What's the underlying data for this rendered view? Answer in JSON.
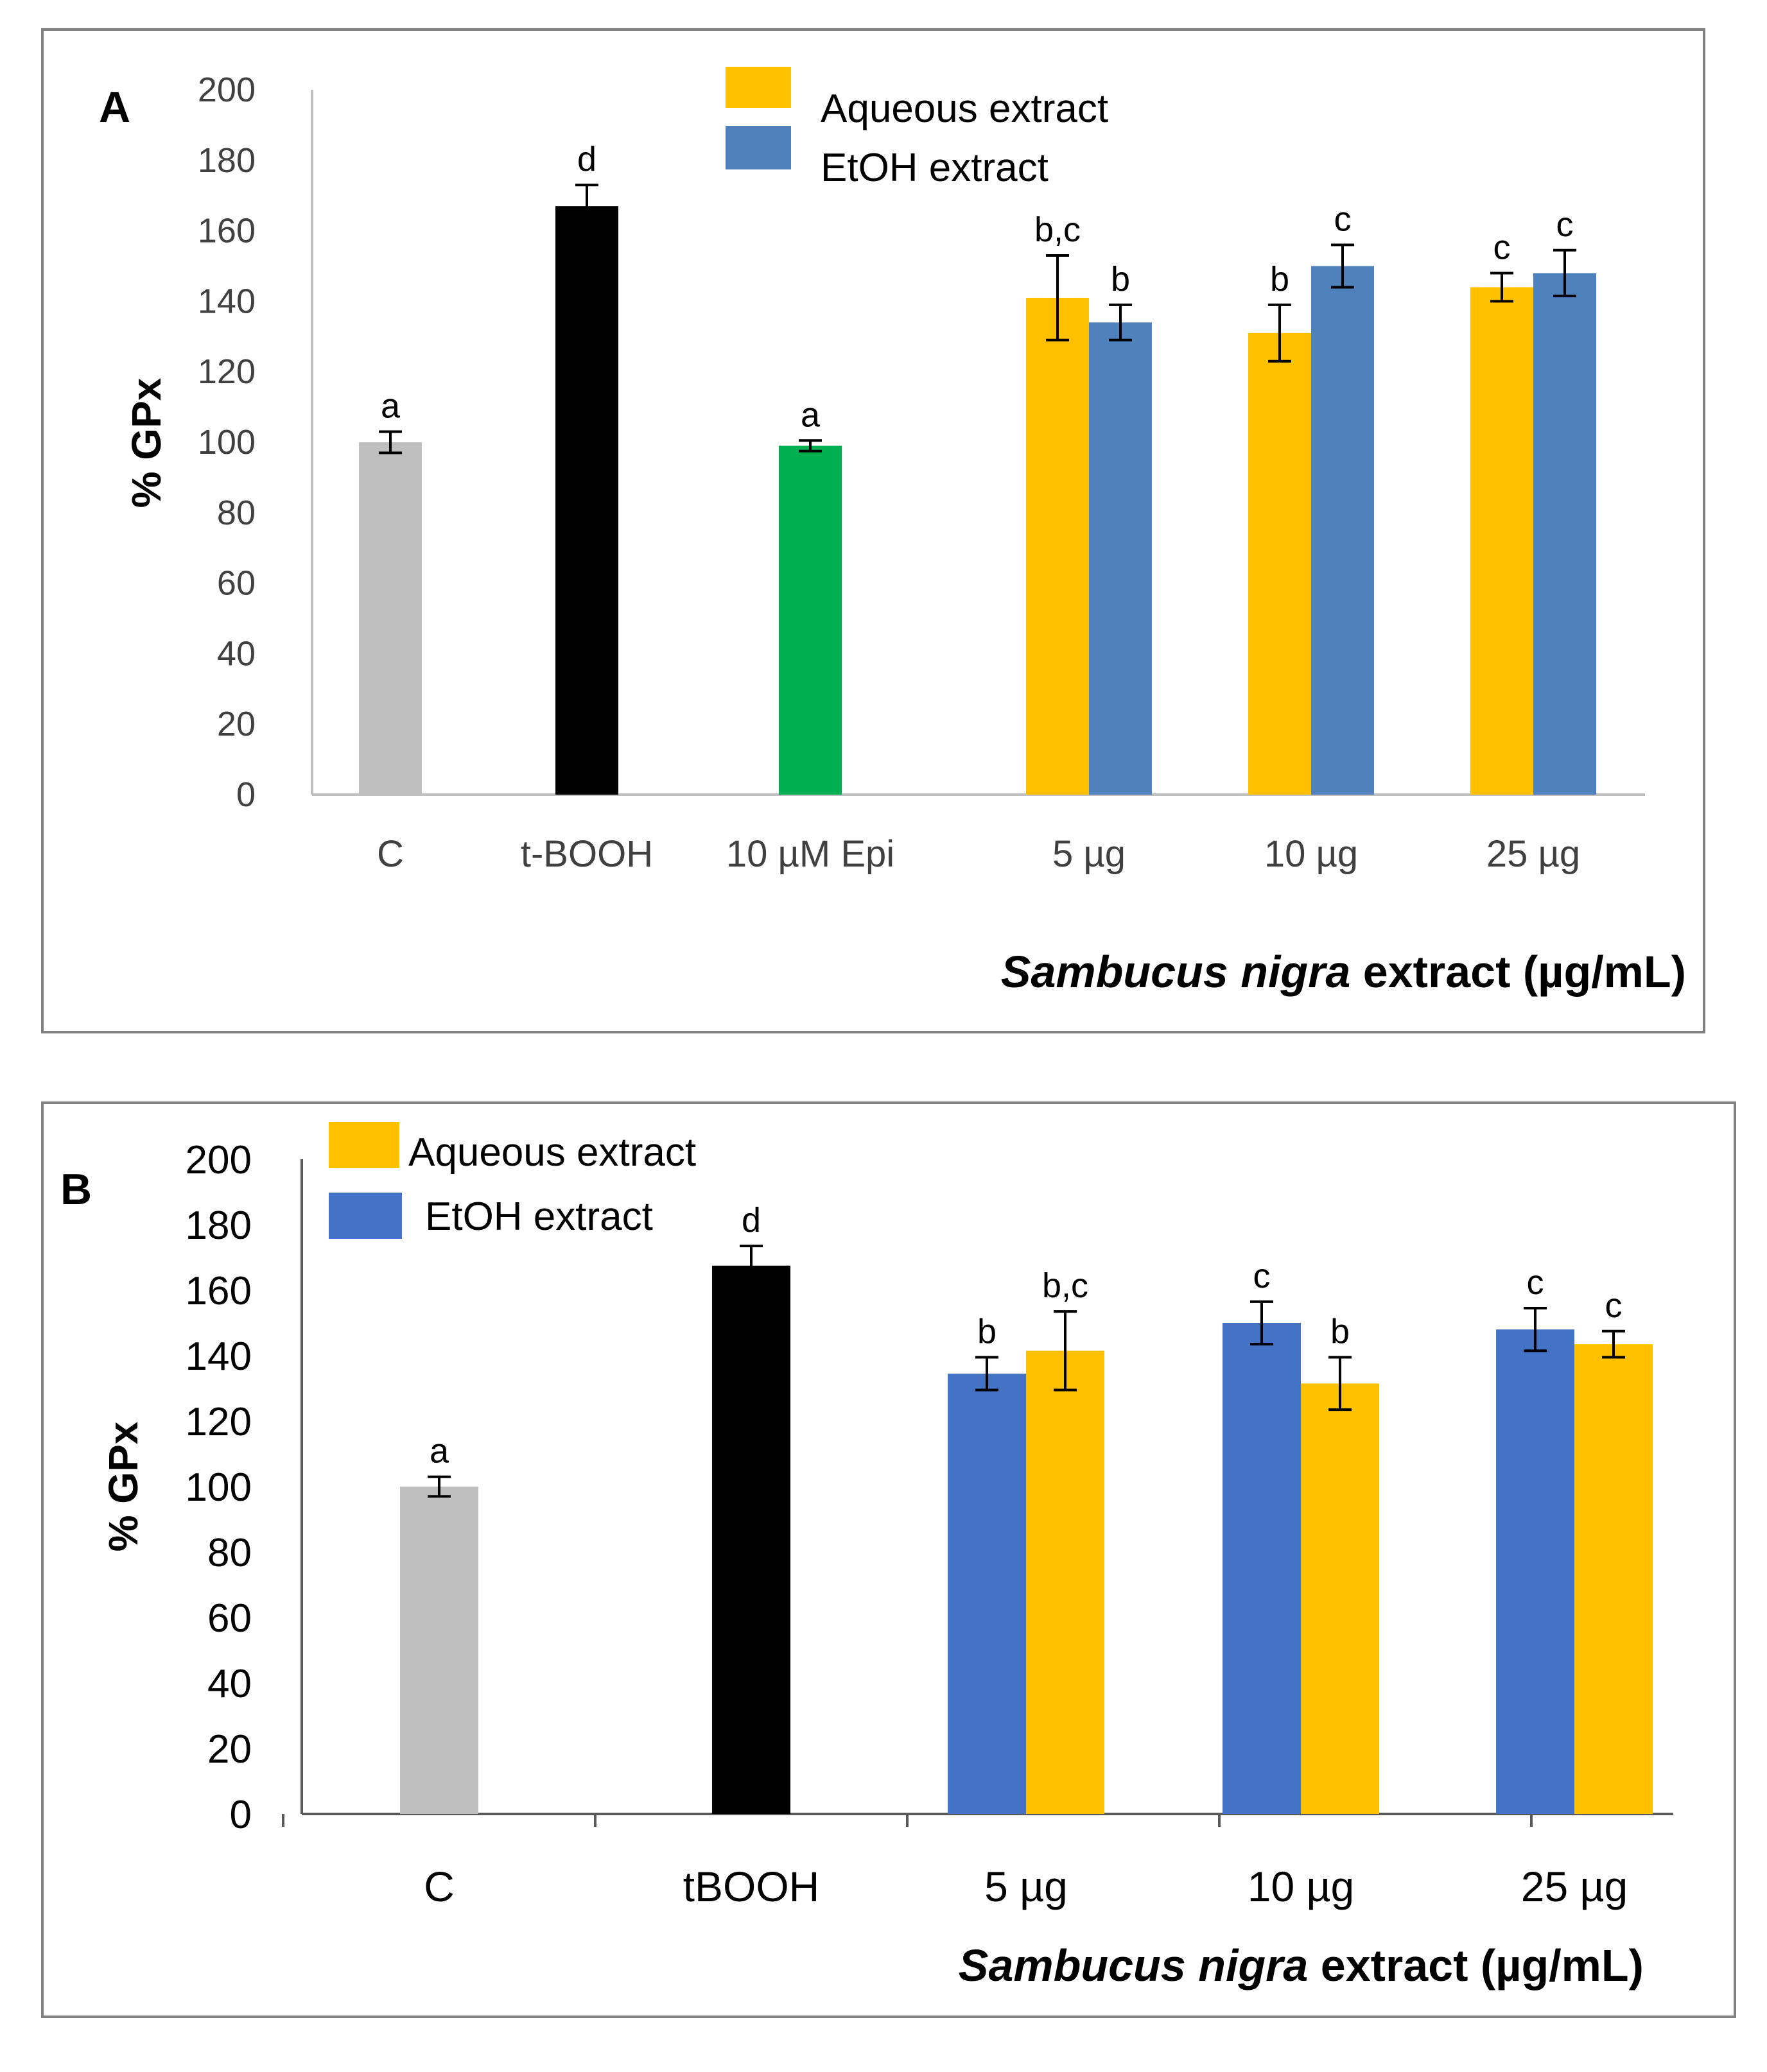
{
  "colors": {
    "control": "#BFBFBF",
    "tbooh": "#000000",
    "epi": "#00B050",
    "aqueous": "#FFC000",
    "etoh_A": "#4F81BD",
    "etoh_B": "#4472C4",
    "frame": "#808080"
  },
  "chart_data": [
    {
      "type": "bar",
      "panel_label": "A",
      "ylabel": "% GPx",
      "xlabel_italic": "Sambucus nigra",
      "xlabel_rest": " extract (µg/mL)",
      "ylim": [
        0,
        200
      ],
      "yticks": [
        "0",
        "20",
        "40",
        "60",
        "80",
        "100",
        "120",
        "140",
        "160",
        "180",
        "200"
      ],
      "legend": [
        {
          "name": "Aqueous extract",
          "color_key": "aqueous"
        },
        {
          "name": "EtOH extract",
          "color_key": "etoh_A"
        }
      ],
      "legend_position": "top-center",
      "categories": [
        "C",
        "t-BOOH",
        "10 µM Epi",
        "5 µg",
        "10 µg",
        "25 µg"
      ],
      "groups": [
        {
          "category": "C",
          "bars": [
            {
              "value": 100,
              "err": 3,
              "label": "a",
              "color_key": "control"
            }
          ]
        },
        {
          "category": "t-BOOH",
          "bars": [
            {
              "value": 167,
              "err": 6,
              "label": "d",
              "color_key": "tbooh"
            }
          ]
        },
        {
          "category": "10 µM Epi",
          "bars": [
            {
              "value": 99,
              "err": 1.5,
              "label": "a",
              "color_key": "epi"
            }
          ]
        },
        {
          "category": "5 µg",
          "bars": [
            {
              "series": "Aqueous extract",
              "value": 141,
              "err": 12,
              "label": "b,c",
              "color_key": "aqueous"
            },
            {
              "series": "EtOH extract",
              "value": 134,
              "err": 5,
              "label": "b",
              "color_key": "etoh_A"
            }
          ]
        },
        {
          "category": "10 µg",
          "bars": [
            {
              "series": "Aqueous extract",
              "value": 131,
              "err": 8,
              "label": "b",
              "color_key": "aqueous"
            },
            {
              "series": "EtOH extract",
              "value": 150,
              "err": 6,
              "label": "c",
              "color_key": "etoh_A"
            }
          ]
        },
        {
          "category": "25 µg",
          "bars": [
            {
              "series": "Aqueous extract",
              "value": 144,
              "err": 4,
              "label": "c",
              "color_key": "aqueous"
            },
            {
              "series": "EtOH extract",
              "value": 148,
              "err": 6.5,
              "label": "c",
              "color_key": "etoh_A"
            }
          ]
        }
      ]
    },
    {
      "type": "bar",
      "panel_label": "B",
      "ylabel": "% GPx",
      "xlabel_italic": "Sambucus nigra",
      "xlabel_rest": " extract (µg/mL)",
      "ylim": [
        0,
        200
      ],
      "yticks": [
        "0",
        "20",
        "40",
        "60",
        "80",
        "100",
        "120",
        "140",
        "160",
        "180",
        "200"
      ],
      "legend": [
        {
          "name": "Aqueous extract",
          "color_key": "aqueous"
        },
        {
          "name": "EtOH extract",
          "color_key": "etoh_B"
        }
      ],
      "legend_position": "top-left",
      "categories": [
        "C",
        "tBOOH",
        "5 µg",
        "10 µg",
        "25 µg"
      ],
      "groups": [
        {
          "category": "C",
          "bars": [
            {
              "value": 100,
              "err": 3,
              "label": "a",
              "color_key": "control"
            }
          ]
        },
        {
          "category": "tBOOH",
          "bars": [
            {
              "value": 167.5,
              "err": 6,
              "label": "d",
              "color_key": "tbooh"
            }
          ]
        },
        {
          "category": "5 µg",
          "bars": [
            {
              "series": "EtOH extract",
              "value": 134.5,
              "err": 5,
              "label": "b",
              "color_key": "etoh_B"
            },
            {
              "series": "Aqueous extract",
              "value": 141.5,
              "err": 12,
              "label": "b,c",
              "color_key": "aqueous"
            }
          ]
        },
        {
          "category": "10 µg",
          "bars": [
            {
              "series": "EtOH extract",
              "value": 150,
              "err": 6.5,
              "label": "c",
              "color_key": "etoh_B"
            },
            {
              "series": "Aqueous extract",
              "value": 131.5,
              "err": 8,
              "label": "b",
              "color_key": "aqueous"
            }
          ]
        },
        {
          "category": "25 µg",
          "bars": [
            {
              "series": "EtOH extract",
              "value": 148,
              "err": 6.5,
              "label": "c",
              "color_key": "etoh_B"
            },
            {
              "series": "Aqueous extract",
              "value": 143.5,
              "err": 4,
              "label": "c",
              "color_key": "aqueous"
            }
          ]
        }
      ]
    }
  ]
}
